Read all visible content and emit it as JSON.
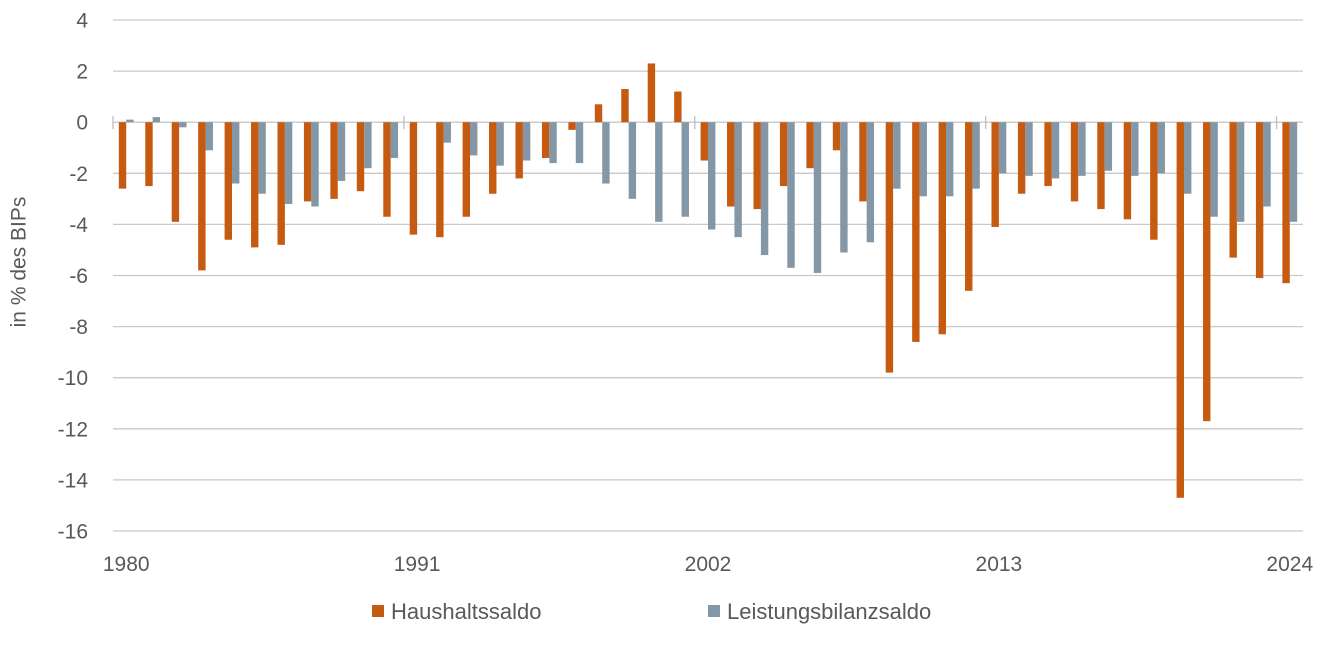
{
  "chart_data": {
    "type": "bar",
    "x": [
      1980,
      1981,
      1982,
      1983,
      1984,
      1985,
      1986,
      1987,
      1988,
      1989,
      1990,
      1991,
      1992,
      1993,
      1994,
      1995,
      1996,
      1997,
      1998,
      1999,
      2000,
      2001,
      2002,
      2003,
      2004,
      2005,
      2006,
      2007,
      2008,
      2009,
      2010,
      2011,
      2012,
      2013,
      2014,
      2015,
      2016,
      2017,
      2018,
      2019,
      2020,
      2021,
      2022,
      2023,
      2024
    ],
    "xticks": [
      1980,
      1991,
      2002,
      2013,
      2024
    ],
    "ylabel": "in % des BIPs",
    "ylim": [
      -16,
      4
    ],
    "yticks": [
      4,
      2,
      0,
      -2,
      -4,
      -6,
      -8,
      -10,
      -12,
      -14,
      -16
    ],
    "grid": true,
    "legend": "bottom",
    "series": [
      {
        "name": "Haushaltssaldo",
        "color": "#C55A11",
        "values": [
          -2.6,
          -2.5,
          -3.9,
          -5.8,
          -4.6,
          -4.9,
          -4.8,
          -3.1,
          -3.0,
          -2.7,
          -3.7,
          -4.4,
          -4.5,
          -3.7,
          -2.8,
          -2.2,
          -1.4,
          -0.3,
          0.7,
          1.3,
          2.3,
          1.2,
          -1.5,
          -3.3,
          -3.4,
          -2.5,
          -1.8,
          -1.1,
          -3.1,
          -9.8,
          -8.6,
          -8.3,
          -6.6,
          -4.1,
          -2.8,
          -2.5,
          -3.1,
          -3.4,
          -3.8,
          -4.6,
          -14.7,
          -11.7,
          -5.3,
          -6.1,
          -6.3
        ]
      },
      {
        "name": "Leistungsbilanzsaldo",
        "color": "#8497A6",
        "values": [
          0.1,
          0.2,
          -0.2,
          -1.1,
          -2.4,
          -2.8,
          -3.2,
          -3.3,
          -2.3,
          -1.8,
          -1.4,
          0.0,
          -0.8,
          -1.3,
          -1.7,
          -1.5,
          -1.6,
          -1.6,
          -2.4,
          -3.0,
          -3.9,
          -3.7,
          -4.2,
          -4.5,
          -5.2,
          -5.7,
          -5.9,
          -5.1,
          -4.7,
          -2.6,
          -2.9,
          -2.9,
          -2.6,
          -2.0,
          -2.1,
          -2.2,
          -2.1,
          -1.9,
          -2.1,
          -2.0,
          -2.8,
          -3.7,
          -3.9,
          -3.3,
          -3.9
        ]
      }
    ]
  }
}
